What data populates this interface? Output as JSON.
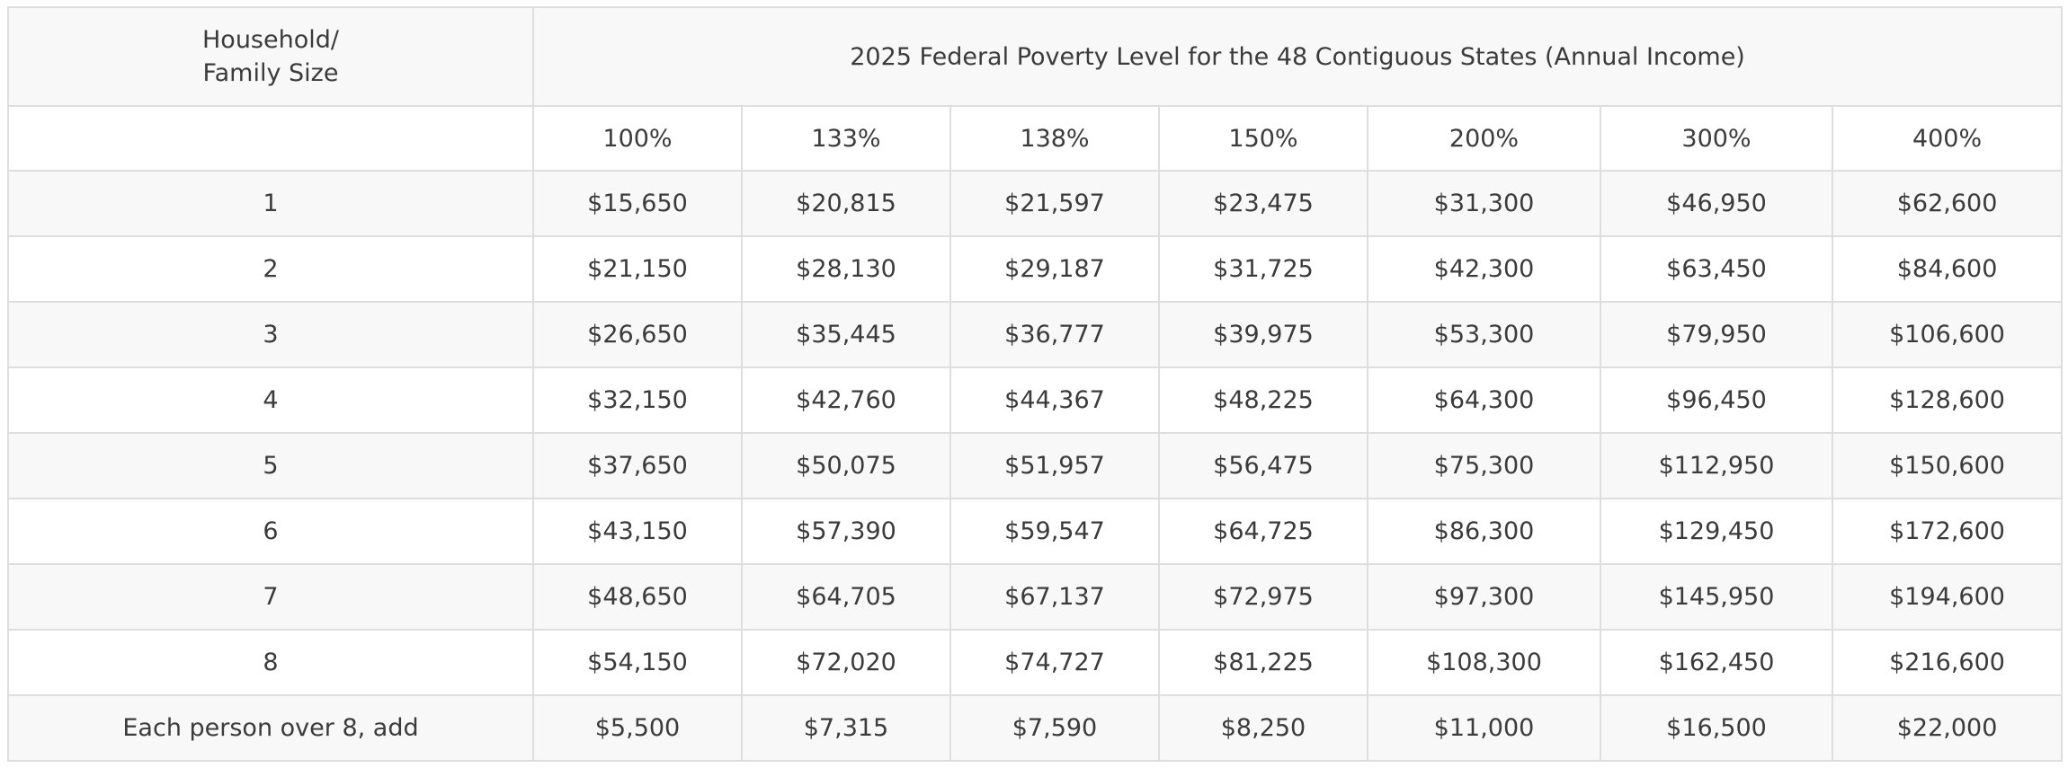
{
  "table": {
    "size_header_lines": [
      "Household/",
      "Family Size"
    ],
    "title": "2025 Federal Poverty Level for the 48 Contiguous States (Annual Income)",
    "percent_columns": [
      "100%",
      "133%",
      "138%",
      "150%",
      "200%",
      "300%",
      "400%"
    ],
    "rows": [
      {
        "size": "1",
        "values": [
          "$15,650",
          "$20,815",
          "$21,597",
          "$23,475",
          "$31,300",
          "$46,950",
          "$62,600"
        ]
      },
      {
        "size": "2",
        "values": [
          "$21,150",
          "$28,130",
          "$29,187",
          "$31,725",
          "$42,300",
          "$63,450",
          "$84,600"
        ]
      },
      {
        "size": "3",
        "values": [
          "$26,650",
          "$35,445",
          "$36,777",
          "$39,975",
          "$53,300",
          "$79,950",
          "$106,600"
        ]
      },
      {
        "size": "4",
        "values": [
          "$32,150",
          "$42,760",
          "$44,367",
          "$48,225",
          "$64,300",
          "$96,450",
          "$128,600"
        ]
      },
      {
        "size": "5",
        "values": [
          "$37,650",
          "$50,075",
          "$51,957",
          "$56,475",
          "$75,300",
          "$112,950",
          "$150,600"
        ]
      },
      {
        "size": "6",
        "values": [
          "$43,150",
          "$57,390",
          "$59,547",
          "$64,725",
          "$86,300",
          "$129,450",
          "$172,600"
        ]
      },
      {
        "size": "7",
        "values": [
          "$48,650",
          "$64,705",
          "$67,137",
          "$72,975",
          "$97,300",
          "$145,950",
          "$194,600"
        ]
      },
      {
        "size": "8",
        "values": [
          "$54,150",
          "$72,020",
          "$74,727",
          "$81,225",
          "$108,300",
          "$162,450",
          "$216,600"
        ]
      },
      {
        "size": "Each person over 8, add",
        "values": [
          "$5,500",
          "$7,315",
          "$7,590",
          "$8,250",
          "$11,000",
          "$16,500",
          "$22,000"
        ]
      }
    ]
  }
}
